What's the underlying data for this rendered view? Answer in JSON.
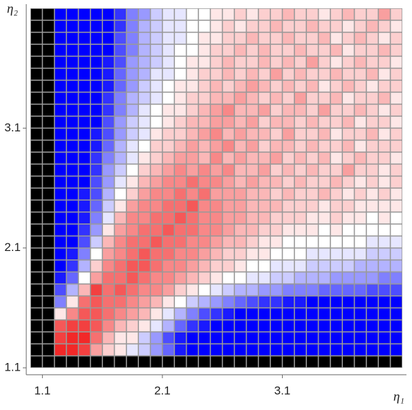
{
  "chart_data": {
    "type": "heatmap",
    "x_label": "η₁",
    "y_label": "η₂",
    "xlim": [
      1.0,
      4.1
    ],
    "ylim": [
      1.1,
      4.1
    ],
    "xticks": [
      1.1,
      2.1,
      3.1
    ],
    "yticks": [
      1.1,
      2.1,
      3.1
    ],
    "x": [
      1.05,
      1.15,
      1.25,
      1.35,
      1.45,
      1.55,
      1.65,
      1.75,
      1.85,
      1.95,
      2.05,
      2.15,
      2.25,
      2.35,
      2.45,
      2.55,
      2.65,
      2.75,
      2.85,
      2.95,
      3.05,
      3.15,
      3.25,
      3.35,
      3.45,
      3.55,
      3.65,
      3.75,
      3.85,
      3.95,
      4.05
    ],
    "y": [
      1.15,
      1.25,
      1.35,
      1.45,
      1.55,
      1.65,
      1.75,
      1.85,
      1.95,
      2.05,
      2.15,
      2.25,
      2.35,
      2.45,
      2.55,
      2.65,
      2.75,
      2.85,
      2.95,
      3.05,
      3.15,
      3.25,
      3.35,
      3.45,
      3.55,
      3.65,
      3.75,
      3.85,
      3.95,
      4.05
    ],
    "zlim": [
      -1,
      1
    ],
    "colors": [
      "#0000ff",
      "#ffffff",
      "#f01010"
    ],
    "null_color": "#000000",
    "z": [
      [
        null,
        null,
        null,
        null,
        null,
        null,
        null,
        null,
        null,
        null,
        null,
        null,
        null,
        null,
        null,
        null,
        null,
        null,
        null,
        null,
        null,
        null,
        null,
        null,
        null,
        null,
        null,
        null,
        null,
        null,
        null
      ],
      [
        null,
        null,
        0.9,
        0.9,
        0.8,
        0.4,
        0.2,
        0.1,
        -0.1,
        -0.2,
        -0.4,
        -0.6,
        -0.9,
        -1,
        -1,
        -1,
        -1,
        -1,
        -1,
        -1,
        -1,
        -1,
        -1,
        -1,
        -1,
        -1,
        -1,
        -1,
        -1,
        -1,
        -1
      ],
      [
        null,
        null,
        0.8,
        0.9,
        0.9,
        0.6,
        0.3,
        0.1,
        0.1,
        -0.2,
        -0.4,
        -0.7,
        -0.9,
        -1,
        -1,
        -1,
        -1,
        -1,
        -1,
        -1,
        -1,
        -1,
        -1,
        -1,
        -1,
        -1,
        -1,
        -1,
        -1,
        -1,
        -1
      ],
      [
        null,
        null,
        0.7,
        0.8,
        0.8,
        0.7,
        0.5,
        0.3,
        0.2,
        0.1,
        -0.1,
        -0.3,
        -0.6,
        -0.8,
        -0.9,
        -1,
        -1,
        -1,
        -1,
        -1,
        -1,
        -1,
        -1,
        -1,
        -1,
        -1,
        -1,
        -1,
        -1,
        -1,
        -1
      ],
      [
        null,
        null,
        0.1,
        0.5,
        0.7,
        0.7,
        0.6,
        0.5,
        0.4,
        0.3,
        0.1,
        -0.1,
        -0.3,
        -0.5,
        -0.7,
        -0.8,
        -0.9,
        -1,
        -1,
        -1,
        -1,
        -1,
        -1,
        -1,
        -1,
        -1,
        -1,
        -1,
        -1,
        -1,
        -1
      ],
      [
        null,
        null,
        -0.5,
        0.1,
        0.6,
        0.7,
        0.6,
        0.6,
        0.5,
        0.4,
        0.3,
        0.1,
        0,
        -0.2,
        -0.3,
        -0.4,
        -0.5,
        -0.6,
        -0.7,
        -0.8,
        -0.8,
        -0.9,
        -0.9,
        -1,
        -1,
        -1,
        -1,
        -1,
        -1,
        -1,
        -1
      ],
      [
        null,
        null,
        -0.7,
        -0.3,
        0.3,
        0.8,
        0.6,
        0.7,
        0.6,
        0.5,
        0.5,
        0.4,
        0.2,
        0.1,
        0,
        -0.1,
        -0.2,
        -0.3,
        -0.3,
        -0.4,
        -0.4,
        -0.5,
        -0.5,
        -0.5,
        -0.6,
        -0.6,
        -0.6,
        -0.6,
        -0.7,
        -0.7,
        -0.7
      ],
      [
        null,
        null,
        -0.9,
        -0.6,
        0,
        0.4,
        0.6,
        0.6,
        0.7,
        0.6,
        0.5,
        0.5,
        0.4,
        0.3,
        0.2,
        0.1,
        0,
        0,
        -0.1,
        -0.1,
        -0.2,
        -0.2,
        -0.3,
        -0.3,
        -0.3,
        -0.4,
        -0.4,
        -0.4,
        -0.4,
        -0.5,
        -0.5
      ],
      [
        null,
        null,
        -1,
        -0.8,
        -0.3,
        0.2,
        0.5,
        0.6,
        0.7,
        0.7,
        0.6,
        0.5,
        0.5,
        0.4,
        0.3,
        0.2,
        0.2,
        0.1,
        0,
        0,
        -0.1,
        -0.1,
        -0.1,
        -0.2,
        -0.2,
        -0.2,
        -0.2,
        -0.3,
        -0.3,
        -0.3,
        -0.3
      ],
      [
        null,
        null,
        -1,
        -0.9,
        -0.5,
        0,
        0.4,
        0.5,
        0.6,
        0.7,
        0.6,
        0.6,
        0.5,
        0.5,
        0.4,
        0.3,
        0.2,
        0.2,
        0.1,
        0.1,
        0,
        0,
        0,
        -0.1,
        -0.1,
        -0.1,
        -0.1,
        -0.1,
        -0.2,
        -0.2,
        -0.2
      ],
      [
        null,
        null,
        -1,
        -1,
        -0.7,
        -0.2,
        0.3,
        0.5,
        0.6,
        0.6,
        0.7,
        0.6,
        0.6,
        0.5,
        0.5,
        0.4,
        0.3,
        0.3,
        0.2,
        0.1,
        0.1,
        0,
        0,
        0,
        0,
        0,
        0,
        0,
        -0.1,
        -0.1,
        -0.1
      ],
      [
        null,
        null,
        -1,
        -1,
        -0.8,
        -0.4,
        0.1,
        0.4,
        0.5,
        0.6,
        0.6,
        0.7,
        0.6,
        0.6,
        0.5,
        0.5,
        0.4,
        0.3,
        0.3,
        0.2,
        0.2,
        0.1,
        0.1,
        0.1,
        0,
        0.1,
        0,
        0,
        0,
        0,
        0
      ],
      [
        null,
        null,
        -1,
        -1,
        -0.9,
        -0.5,
        -0.1,
        0.3,
        0.5,
        0.5,
        0.6,
        0.6,
        0.7,
        0.6,
        0.5,
        0.5,
        0.4,
        0.4,
        0.3,
        0.3,
        0.2,
        0.2,
        0.2,
        0.1,
        0.1,
        0.2,
        0.1,
        0.1,
        0,
        0.1,
        0
      ],
      [
        null,
        null,
        -1,
        -1,
        -0.9,
        -0.6,
        -0.2,
        0.1,
        0.4,
        0.5,
        0.5,
        0.6,
        0.6,
        0.7,
        0.5,
        0.5,
        0.4,
        0.4,
        0.3,
        0.3,
        0.3,
        0.2,
        0.2,
        0.2,
        0.1,
        0.2,
        0.2,
        0.1,
        0.1,
        0.1,
        0.1
      ],
      [
        null,
        null,
        -1,
        -1,
        -0.9,
        -0.7,
        -0.3,
        0,
        0.2,
        0.4,
        0.5,
        0.5,
        0.6,
        0.5,
        0.6,
        0.4,
        0.4,
        0.4,
        0.3,
        0.3,
        0.2,
        0.3,
        0.2,
        0.2,
        0.3,
        0.2,
        0.1,
        0.2,
        0.1,
        0.2,
        0.1
      ],
      [
        null,
        null,
        -1,
        -1,
        -1,
        -0.7,
        -0.4,
        -0.1,
        0.1,
        0.3,
        0.4,
        0.5,
        0.5,
        0.6,
        0.5,
        0.5,
        0.4,
        0.3,
        0.4,
        0.3,
        0.3,
        0.2,
        0.3,
        0.2,
        0.2,
        0.3,
        0.2,
        0.1,
        0.2,
        0.1,
        0.2
      ],
      [
        null,
        null,
        -1,
        -1,
        -1,
        -0.8,
        -0.4,
        -0.2,
        0,
        0.2,
        0.3,
        0.4,
        0.5,
        0.4,
        0.5,
        0.4,
        0.5,
        0.3,
        0.3,
        0.4,
        0.2,
        0.3,
        0.2,
        0.3,
        0.2,
        0.2,
        0.4,
        0.2,
        0.2,
        0.1,
        0.2
      ],
      [
        null,
        null,
        -1,
        -1,
        -1,
        -0.8,
        -0.5,
        -0.3,
        -0.1,
        0.1,
        0.2,
        0.3,
        0.4,
        0.4,
        0.3,
        0.5,
        0.3,
        0.4,
        0.3,
        0.3,
        0.4,
        0.2,
        0.3,
        0.2,
        0.3,
        0.1,
        0.2,
        0.3,
        0.2,
        0.2,
        0.1
      ],
      [
        null,
        null,
        -1,
        -1,
        -1,
        -0.9,
        -0.6,
        -0.3,
        -0.1,
        0,
        0.2,
        0.2,
        0.3,
        0.4,
        0.3,
        0.4,
        0.5,
        0.3,
        0.4,
        0.2,
        0.3,
        0.3,
        0.2,
        0.3,
        0.2,
        0.2,
        0.3,
        0.1,
        0.2,
        0.2,
        0.2
      ],
      [
        null,
        null,
        -1,
        -1,
        -1,
        -0.9,
        -0.7,
        -0.4,
        -0.2,
        -0.1,
        0.1,
        0.2,
        0.2,
        0.3,
        0.4,
        0.5,
        0.3,
        0.4,
        0.3,
        0.3,
        0.2,
        0.4,
        0.2,
        0.2,
        0.3,
        0.1,
        0.2,
        0.2,
        0.3,
        0.1,
        0.2
      ],
      [
        null,
        null,
        -1,
        -1,
        -1,
        -1,
        -0.7,
        -0.4,
        -0.2,
        -0.1,
        0,
        0.1,
        0.2,
        0.3,
        0.3,
        0.4,
        0.4,
        0.3,
        0.4,
        0.2,
        0.3,
        0.3,
        0.2,
        0.3,
        0.2,
        0.2,
        0.3,
        0.1,
        0.2,
        0.2,
        0.1
      ],
      [
        null,
        null,
        -1,
        -1,
        -1,
        -1,
        -0.8,
        -0.5,
        -0.3,
        -0.1,
        0,
        0.1,
        0.1,
        0.2,
        0.3,
        0.4,
        0.5,
        0.3,
        0.3,
        0.4,
        0.2,
        0.3,
        0.3,
        0.2,
        0.4,
        0.2,
        0.2,
        0.3,
        0.2,
        0.1,
        0.2
      ],
      [
        null,
        null,
        -1,
        -1,
        -1,
        -1,
        -0.8,
        -0.5,
        -0.3,
        -0.2,
        -0.1,
        0,
        0.1,
        0.2,
        0.2,
        0.3,
        0.3,
        0.4,
        0.3,
        0.2,
        0.3,
        0.2,
        0.4,
        0.2,
        0.2,
        0.3,
        0.1,
        0.2,
        0.2,
        0.3,
        0.1
      ],
      [
        null,
        null,
        -1,
        -1,
        -1,
        -1,
        -0.9,
        -0.6,
        -0.4,
        -0.2,
        -0.1,
        0,
        0.1,
        0.1,
        0.2,
        0.3,
        0.2,
        0.3,
        0.4,
        0.3,
        0.2,
        0.3,
        0.2,
        0.3,
        0.1,
        0.2,
        0.3,
        0.2,
        0.1,
        0.2,
        0.2
      ],
      [
        null,
        null,
        -1,
        -1,
        -1,
        -1,
        -0.9,
        -0.6,
        -0.4,
        -0.3,
        -0.1,
        -0.1,
        0,
        0.1,
        0.2,
        0.2,
        0.3,
        0.2,
        0.3,
        0.2,
        0.4,
        0.2,
        0.3,
        0.2,
        0.2,
        0.3,
        0.2,
        0.2,
        0.3,
        0.1,
        0.2
      ],
      [
        null,
        null,
        -1,
        -1,
        -1,
        -1,
        -0.9,
        -0.7,
        -0.4,
        -0.3,
        -0.2,
        -0.1,
        0,
        0.1,
        0.1,
        0.2,
        0.3,
        0.2,
        0.2,
        0.3,
        0.2,
        0.3,
        0.2,
        0.4,
        0.2,
        0.1,
        0.2,
        0.3,
        0.2,
        0.2,
        0.1
      ],
      [
        null,
        null,
        -1,
        -1,
        -1,
        -1,
        -1,
        -0.7,
        -0.5,
        -0.3,
        -0.2,
        -0.1,
        0,
        0,
        0.1,
        0.2,
        0.2,
        0.3,
        0.2,
        0.3,
        0.2,
        0.2,
        0.3,
        0.2,
        0.2,
        0.3,
        0.1,
        0.2,
        0.2,
        0.3,
        0.2
      ],
      [
        null,
        null,
        -1,
        -1,
        -1,
        -1,
        -1,
        -0.7,
        -0.5,
        -0.3,
        -0.2,
        -0.1,
        -0.1,
        0,
        0.1,
        0.1,
        0.2,
        0.2,
        0.3,
        0.2,
        0.2,
        0.3,
        0.2,
        0.2,
        0.3,
        0.1,
        0.2,
        0.3,
        0.2,
        0.1,
        0.2
      ],
      [
        null,
        null,
        -1,
        -1,
        -1,
        -1,
        -1,
        -0.8,
        -0.5,
        -0.3,
        -0.2,
        -0.1,
        -0.1,
        0,
        0,
        0.1,
        0.2,
        0.1,
        0.2,
        0.2,
        0.3,
        0.2,
        0.2,
        0.3,
        0.2,
        0.2,
        0.1,
        0.2,
        0.3,
        0.2,
        0.1
      ],
      [
        null,
        null,
        -1,
        -1,
        -1,
        -1,
        -1,
        -0.8,
        -0.5,
        -0.4,
        -0.2,
        -0.1,
        -0.1,
        0,
        0,
        0.1,
        0.1,
        0.2,
        0.1,
        0.2,
        0.2,
        0.3,
        0.2,
        0.2,
        0.1,
        0.2,
        0.3,
        0.2,
        0.2,
        0.4,
        0.2
      ]
    ]
  }
}
